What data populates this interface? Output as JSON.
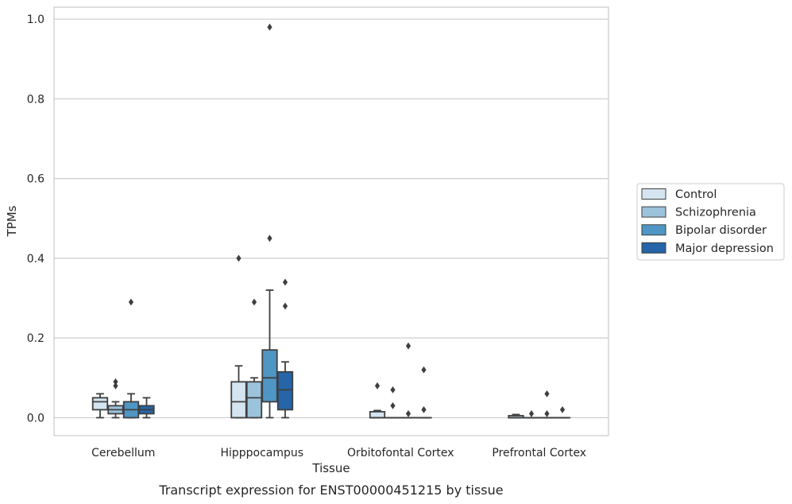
{
  "chart_data": {
    "type": "box",
    "xlabel": "Tissue",
    "ylabel": "TPMs",
    "caption": "Transcript expression for ENST00000451215 by tissue",
    "ylim": [
      -0.045,
      1.03
    ],
    "yticks": [
      0.0,
      0.2,
      0.4,
      0.6,
      0.8,
      1.0
    ],
    "ytick_labels": [
      "0.0",
      "0.2",
      "0.4",
      "0.6",
      "0.8",
      "1.0"
    ],
    "grid": "y",
    "legend_position": "right",
    "categories": [
      "Cerebellum",
      "Hipppocampus",
      "Orbitofontal Cortex",
      "Prefrontal Cortex"
    ],
    "series": [
      {
        "name": "Control",
        "color": "#d4e4f1",
        "boxes": [
          {
            "whislo": 0.0,
            "q1": 0.02,
            "med": 0.04,
            "q3": 0.05,
            "whishi": 0.06,
            "fliers": []
          },
          {
            "whislo": 0.0,
            "q1": 0.0,
            "med": 0.04,
            "q3": 0.09,
            "whishi": 0.13,
            "fliers": [
              0.4
            ]
          },
          {
            "whislo": 0.0,
            "q1": 0.0,
            "med": 0.0,
            "q3": 0.015,
            "whishi": 0.018,
            "fliers": [
              0.08
            ]
          },
          {
            "whislo": 0.0,
            "q1": 0.0,
            "med": 0.0,
            "q3": 0.005,
            "whishi": 0.008,
            "fliers": []
          }
        ]
      },
      {
        "name": "Schizophrenia",
        "color": "#9cc3dc",
        "boxes": [
          {
            "whislo": 0.0,
            "q1": 0.01,
            "med": 0.02,
            "q3": 0.03,
            "whishi": 0.04,
            "fliers": [
              0.08,
              0.09
            ]
          },
          {
            "whislo": 0.0,
            "q1": 0.0,
            "med": 0.05,
            "q3": 0.09,
            "whishi": 0.1,
            "fliers": [
              0.29
            ]
          },
          {
            "whislo": 0.0,
            "q1": 0.0,
            "med": 0.0,
            "q3": 0.0,
            "whishi": 0.0,
            "fliers": [
              0.03,
              0.07
            ]
          },
          {
            "whislo": 0.0,
            "q1": 0.0,
            "med": 0.0,
            "q3": 0.0,
            "whishi": 0.0,
            "fliers": [
              0.01
            ]
          }
        ]
      },
      {
        "name": "Bipolar disorder",
        "color": "#5096c4",
        "boxes": [
          {
            "whislo": 0.0,
            "q1": 0.0,
            "med": 0.02,
            "q3": 0.04,
            "whishi": 0.06,
            "fliers": [
              0.29
            ]
          },
          {
            "whislo": 0.0,
            "q1": 0.04,
            "med": 0.1,
            "q3": 0.17,
            "whishi": 0.32,
            "fliers": [
              0.45,
              0.98
            ]
          },
          {
            "whislo": 0.0,
            "q1": 0.0,
            "med": 0.0,
            "q3": 0.0,
            "whishi": 0.0,
            "fliers": [
              0.01,
              0.18
            ]
          },
          {
            "whislo": 0.0,
            "q1": 0.0,
            "med": 0.0,
            "q3": 0.0,
            "whishi": 0.0,
            "fliers": [
              0.01,
              0.06
            ]
          }
        ]
      },
      {
        "name": "Major depression",
        "color": "#2565a8",
        "boxes": [
          {
            "whislo": 0.0,
            "q1": 0.01,
            "med": 0.02,
            "q3": 0.03,
            "whishi": 0.05,
            "fliers": []
          },
          {
            "whislo": 0.0,
            "q1": 0.02,
            "med": 0.07,
            "q3": 0.115,
            "whishi": 0.14,
            "fliers": [
              0.28,
              0.34
            ]
          },
          {
            "whislo": 0.0,
            "q1": 0.0,
            "med": 0.0,
            "q3": 0.0,
            "whishi": 0.0,
            "fliers": [
              0.02,
              0.12
            ]
          },
          {
            "whislo": 0.0,
            "q1": 0.0,
            "med": 0.0,
            "q3": 0.0,
            "whishi": 0.0,
            "fliers": [
              0.02
            ]
          }
        ]
      }
    ]
  }
}
